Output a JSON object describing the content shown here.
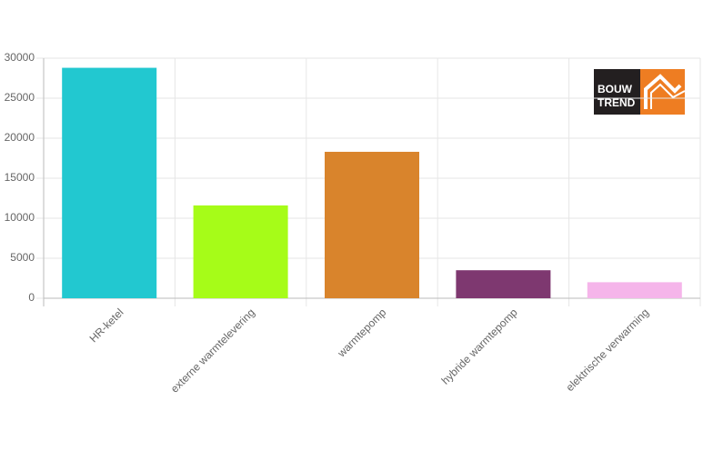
{
  "chart_data": {
    "type": "bar",
    "categories": [
      "HR-ketel",
      "externe warmtelevering",
      "warmtepomp",
      "hybride warmtepomp",
      "elektrische verwarming"
    ],
    "values": [
      28800,
      11600,
      18300,
      3500,
      2000
    ],
    "colors": [
      "#22c8d0",
      "#a6fc18",
      "#d9842c",
      "#7e3870",
      "#f5b5ea"
    ],
    "ylim": [
      0,
      30000
    ],
    "yticks": [
      0,
      5000,
      10000,
      15000,
      20000,
      25000,
      30000
    ],
    "grid": true
  },
  "logo": {
    "line1": "BOUW",
    "line2": "TREND"
  }
}
